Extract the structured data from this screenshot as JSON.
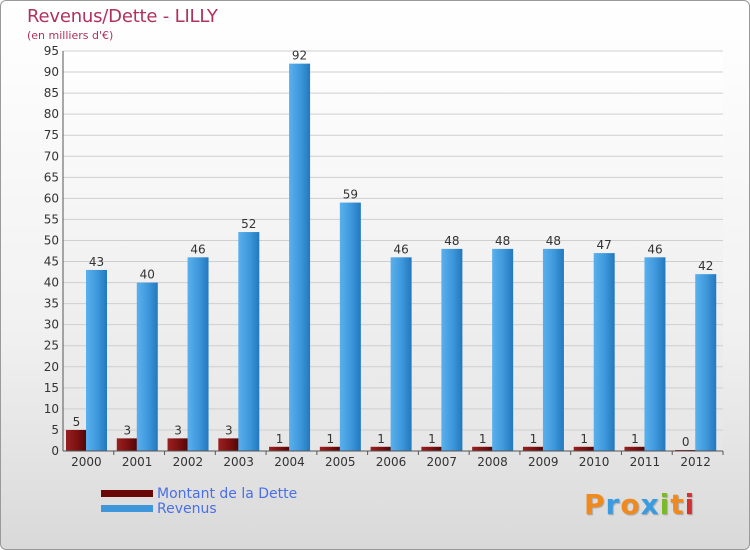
{
  "header": {
    "title": "Revenus/Dette - LILLY",
    "subtitle": "(en milliers d'€)"
  },
  "logo": {
    "text": "Proxiti",
    "colors": [
      "#f08a1e",
      "#3a9be0",
      "#f08a1e",
      "#3a9be0",
      "#7bb928",
      "#f08a1e",
      "#d92e2e"
    ]
  },
  "colors": {
    "dette": "#7a1010",
    "revenus": "#3d97da",
    "axis_text": "#333333",
    "title": "#b0305e",
    "legend_text": "#4a6fe6"
  },
  "legend": [
    {
      "label": "Montant de la Dette",
      "color": "#6a0808"
    },
    {
      "label": "Revenus",
      "color": "#3d97da"
    }
  ],
  "chart_data": {
    "type": "bar",
    "title": "Revenus/Dette - LILLY",
    "subtitle": "(en milliers d'€)",
    "categories": [
      "2000",
      "2001",
      "2002",
      "2003",
      "2004",
      "2005",
      "2006",
      "2007",
      "2008",
      "2009",
      "2010",
      "2011",
      "2012"
    ],
    "series": [
      {
        "name": "Montant de la Dette",
        "values": [
          5,
          3,
          3,
          3,
          1,
          1,
          1,
          1,
          1,
          1,
          1,
          1,
          0
        ]
      },
      {
        "name": "Revenus",
        "values": [
          43,
          40,
          46,
          52,
          92,
          59,
          46,
          48,
          48,
          48,
          47,
          46,
          42
        ]
      }
    ],
    "ylim": [
      0,
      95
    ],
    "yticks": [
      0,
      5,
      10,
      15,
      20,
      25,
      30,
      35,
      40,
      45,
      50,
      55,
      60,
      65,
      70,
      75,
      80,
      85,
      90,
      95
    ],
    "grid": true,
    "legend_position": "bottom-left"
  }
}
